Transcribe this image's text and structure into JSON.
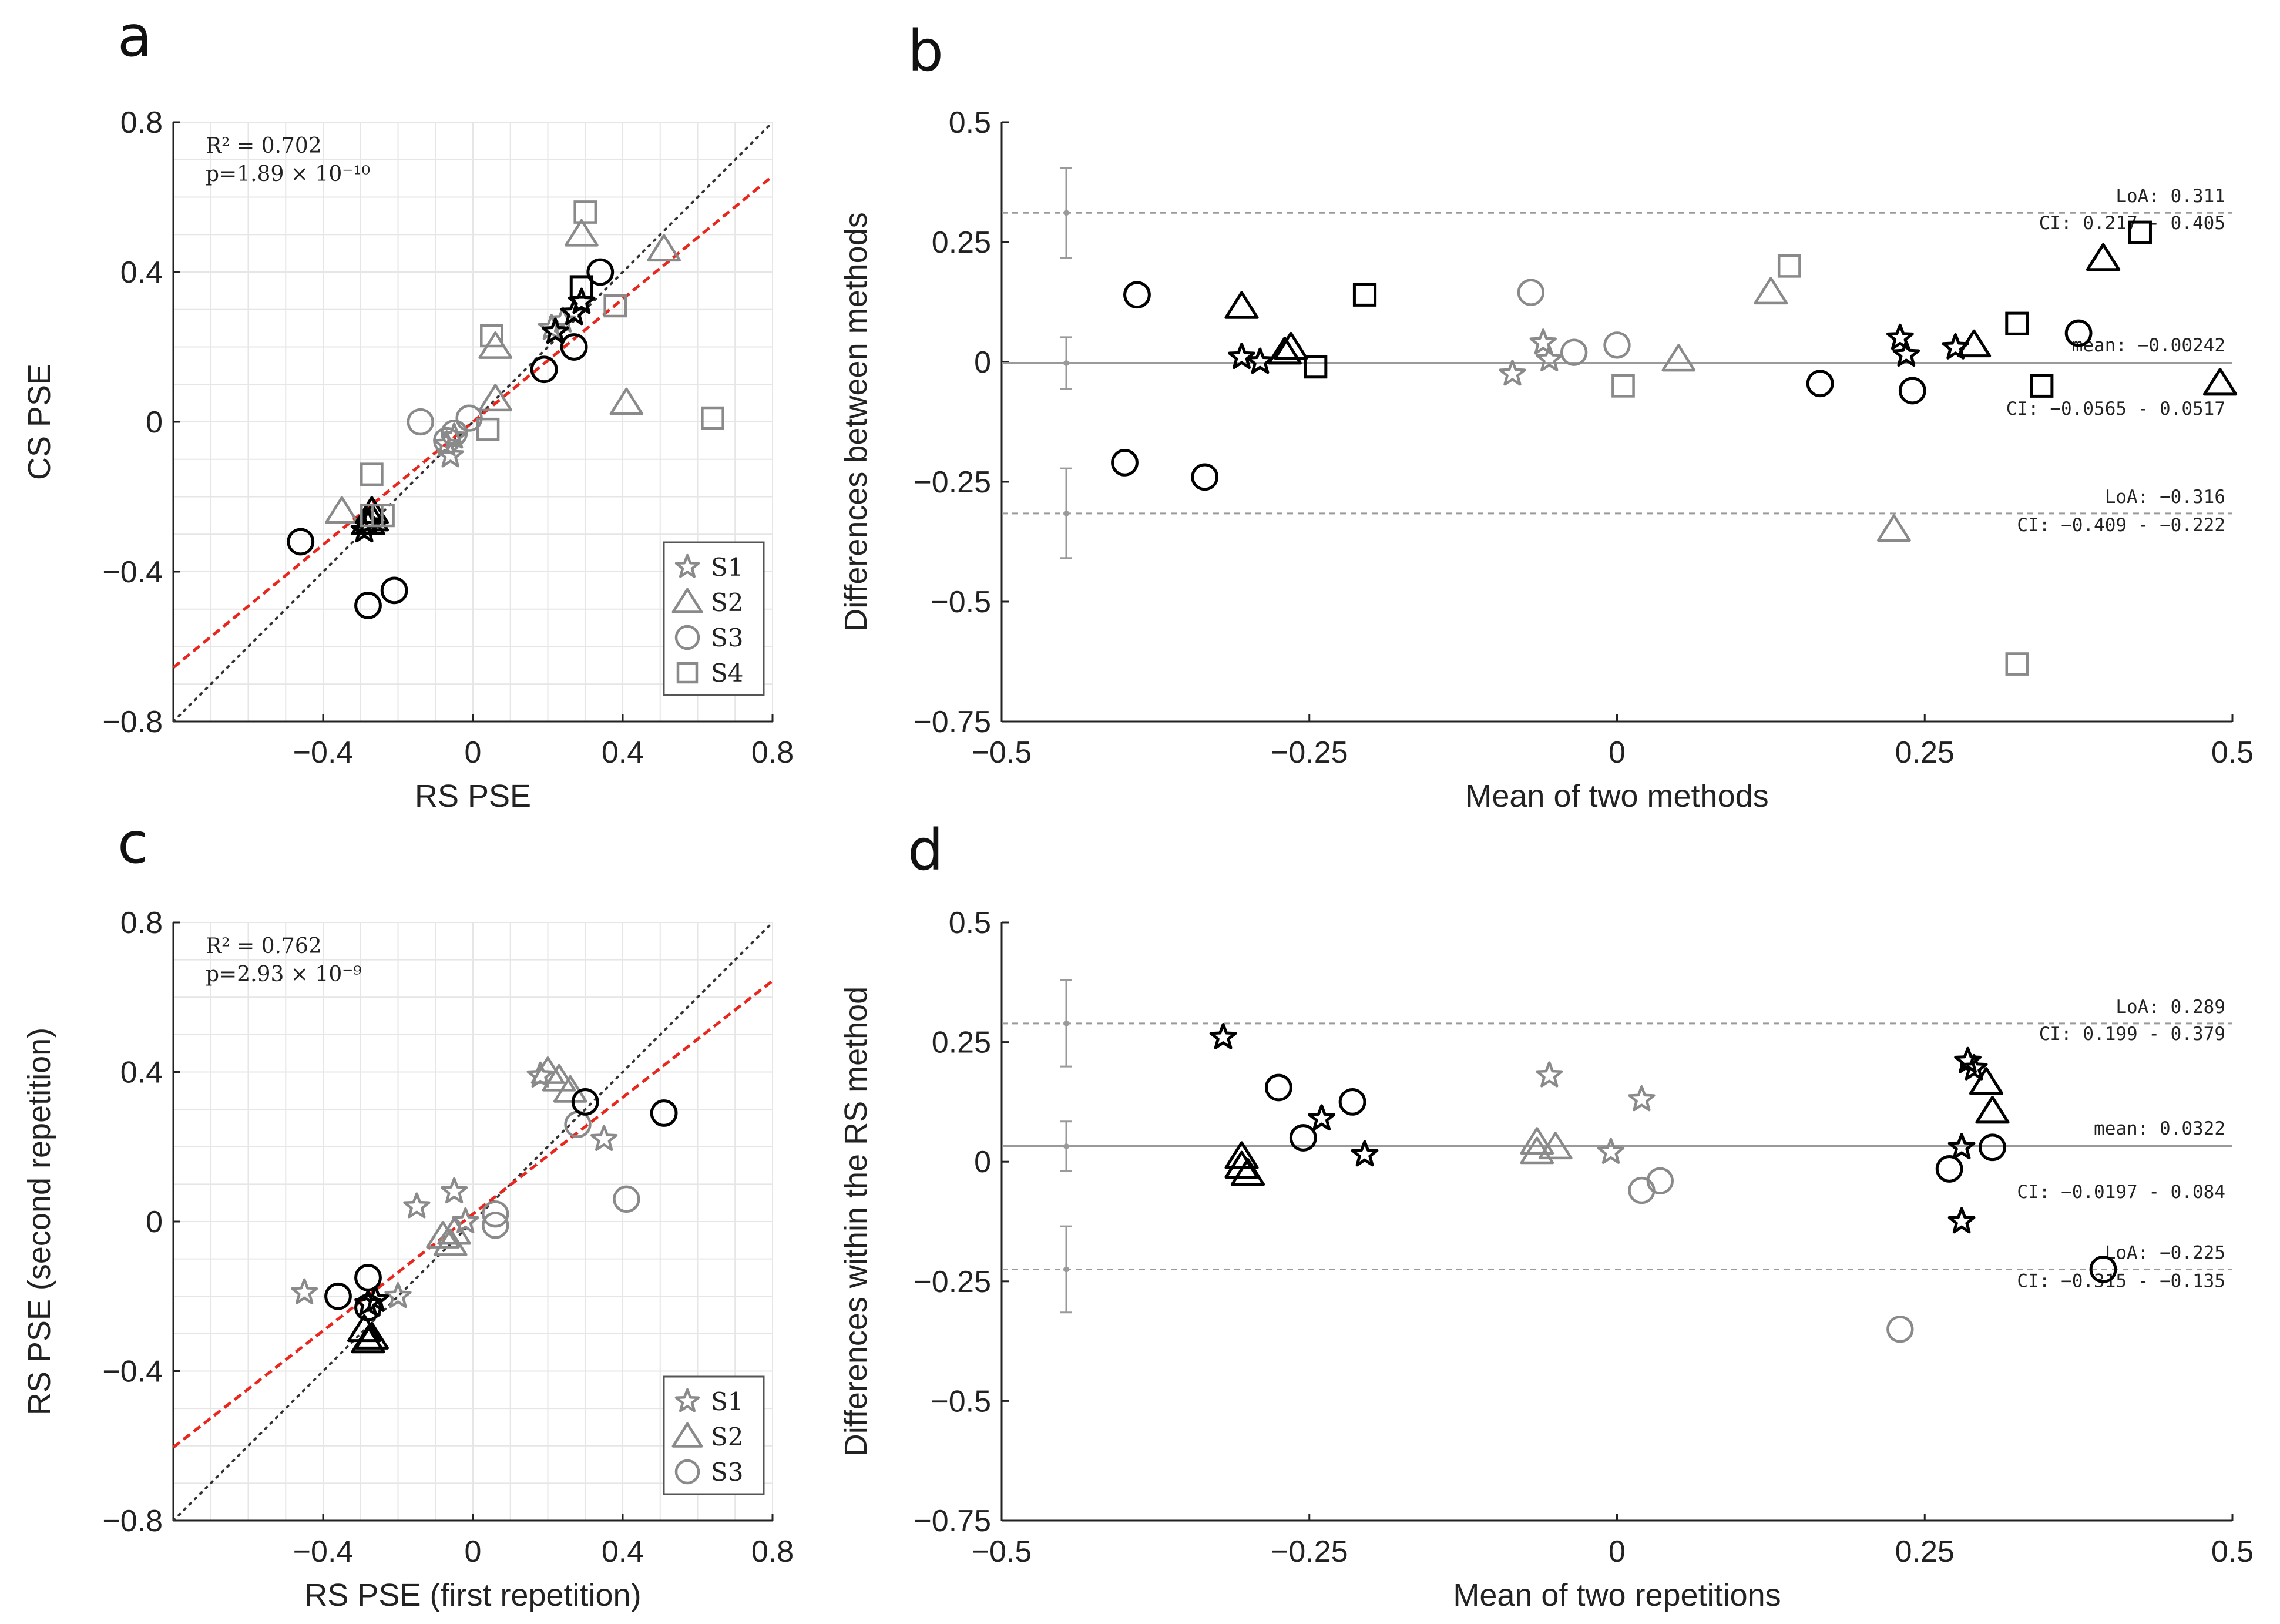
{
  "chart_data": [
    {
      "id": "a",
      "type": "scatter",
      "panel_label": "a",
      "xlabel": "RS PSE",
      "ylabel": "CS PSE",
      "xlim": [
        -0.8,
        0.8
      ],
      "ylim": [
        -0.8,
        0.8
      ],
      "xticks": [
        -0.4,
        0,
        0.4,
        0.8
      ],
      "xtick_labels": [
        "−0.4",
        "0",
        "0.4",
        "0.8"
      ],
      "yticks": [
        -0.8,
        -0.4,
        0,
        0.4,
        0.8
      ],
      "ytick_labels": [
        "−0.8",
        "−0.4",
        "0",
        "0.4",
        "0.8"
      ],
      "grid": true,
      "stats": {
        "r2": "R² = 0.702",
        "p": "p=1.89 × 10⁻¹⁰"
      },
      "identity_line": true,
      "regression": {
        "slope": 0.82,
        "intercept": 0.0
      },
      "legend": {
        "placement": "bottom-right",
        "entries": [
          {
            "label": "S1",
            "marker": "star"
          },
          {
            "label": "S2",
            "marker": "triangle"
          },
          {
            "label": "S3",
            "marker": "circle"
          },
          {
            "label": "S4",
            "marker": "square"
          }
        ]
      },
      "series": [
        {
          "name": "S1",
          "marker": "star",
          "points": [
            {
              "x": -0.06,
              "y": -0.09,
              "c": "g"
            },
            {
              "x": -0.07,
              "y": -0.06,
              "c": "g"
            },
            {
              "x": -0.05,
              "y": -0.04,
              "c": "g"
            },
            {
              "x": 0.21,
              "y": 0.25,
              "c": "g"
            },
            {
              "x": 0.24,
              "y": 0.27,
              "c": "g"
            },
            {
              "x": -0.29,
              "y": -0.29,
              "c": "k"
            },
            {
              "x": -0.28,
              "y": -0.27,
              "c": "k"
            },
            {
              "x": 0.22,
              "y": 0.24,
              "c": "k"
            },
            {
              "x": 0.27,
              "y": 0.29,
              "c": "k"
            },
            {
              "x": 0.29,
              "y": 0.32,
              "c": "k"
            }
          ]
        },
        {
          "name": "S2",
          "marker": "triangle",
          "points": [
            {
              "x": 0.29,
              "y": 0.5,
              "c": "g"
            },
            {
              "x": 0.51,
              "y": 0.46,
              "c": "g"
            },
            {
              "x": 0.06,
              "y": 0.2,
              "c": "g"
            },
            {
              "x": 0.06,
              "y": 0.06,
              "c": "g"
            },
            {
              "x": 0.41,
              "y": 0.05,
              "c": "g"
            },
            {
              "x": -0.35,
              "y": -0.24,
              "c": "g"
            },
            {
              "x": -0.27,
              "y": -0.24,
              "c": "k"
            },
            {
              "x": -0.28,
              "y": -0.27,
              "c": "k"
            },
            {
              "x": -0.27,
              "y": -0.26,
              "c": "k"
            }
          ]
        },
        {
          "name": "S3",
          "marker": "circle",
          "points": [
            {
              "x": -0.14,
              "y": 0.0,
              "c": "g"
            },
            {
              "x": -0.05,
              "y": -0.03,
              "c": "g"
            },
            {
              "x": -0.01,
              "y": 0.01,
              "c": "g"
            },
            {
              "x": -0.07,
              "y": -0.05,
              "c": "g"
            },
            {
              "x": 0.34,
              "y": 0.4,
              "c": "k"
            },
            {
              "x": 0.27,
              "y": 0.2,
              "c": "k"
            },
            {
              "x": 0.19,
              "y": 0.14,
              "c": "k"
            },
            {
              "x": -0.46,
              "y": -0.32,
              "c": "k"
            },
            {
              "x": -0.28,
              "y": -0.49,
              "c": "k"
            },
            {
              "x": -0.21,
              "y": -0.45,
              "c": "k"
            }
          ]
        },
        {
          "name": "S4",
          "marker": "square",
          "points": [
            {
              "x": 0.3,
              "y": 0.56,
              "c": "g"
            },
            {
              "x": 0.38,
              "y": 0.31,
              "c": "g"
            },
            {
              "x": 0.05,
              "y": 0.23,
              "c": "g"
            },
            {
              "x": 0.04,
              "y": -0.02,
              "c": "g"
            },
            {
              "x": 0.64,
              "y": 0.01,
              "c": "g"
            },
            {
              "x": -0.27,
              "y": -0.14,
              "c": "g"
            },
            {
              "x": -0.24,
              "y": -0.25,
              "c": "g"
            },
            {
              "x": -0.27,
              "y": -0.25,
              "c": "g"
            },
            {
              "x": 0.29,
              "y": 0.36,
              "c": "k"
            }
          ]
        }
      ]
    },
    {
      "id": "b",
      "type": "scatter",
      "panel_label": "b",
      "xlabel": "Mean of two methods",
      "ylabel": "Differences between methods",
      "xlim": [
        -0.5,
        0.5
      ],
      "ylim": [
        -0.75,
        0.5
      ],
      "xticks": [
        -0.5,
        -0.25,
        0,
        0.25,
        0.5
      ],
      "xtick_labels": [
        "−0.5",
        "−0.25",
        "0",
        "0.25",
        "0.5"
      ],
      "yticks": [
        -0.75,
        -0.5,
        -0.25,
        0,
        0.25,
        0.5
      ],
      "ytick_labels": [
        "−0.75",
        "−0.5",
        "−0.25",
        "0",
        "0.25",
        "0.5"
      ],
      "mean": -0.00242,
      "loa_upper": 0.311,
      "loa_lower": -0.316,
      "ci_mean": [
        -0.0565,
        0.0517
      ],
      "ci_upper": [
        0.217,
        0.405
      ],
      "ci_lower": [
        -0.409,
        -0.222
      ],
      "annotations": {
        "loa_upper": "LoA: 0.311",
        "ci_upper": "CI: 0.217 - 0.405",
        "mean": "mean: −0.00242",
        "ci_mean": "CI: −0.0565 - 0.0517",
        "loa_lower": "LoA: −0.316",
        "ci_lower": "CI: −0.409 - −0.222"
      },
      "points": [
        {
          "m": "circle",
          "x": -0.39,
          "y": 0.14,
          "c": "k"
        },
        {
          "m": "circle",
          "x": -0.4,
          "y": -0.21,
          "c": "k"
        },
        {
          "m": "circle",
          "x": -0.335,
          "y": -0.24,
          "c": "k"
        },
        {
          "m": "triangle",
          "x": -0.305,
          "y": 0.115,
          "c": "k"
        },
        {
          "m": "star",
          "x": -0.305,
          "y": 0.01,
          "c": "k"
        },
        {
          "m": "star",
          "x": -0.29,
          "y": 0.0,
          "c": "k"
        },
        {
          "m": "triangle",
          "x": -0.27,
          "y": 0.02,
          "c": "k"
        },
        {
          "m": "triangle",
          "x": -0.265,
          "y": 0.03,
          "c": "k"
        },
        {
          "m": "square",
          "x": -0.245,
          "y": -0.01,
          "c": "k"
        },
        {
          "m": "square",
          "x": -0.205,
          "y": 0.14,
          "c": "k"
        },
        {
          "m": "star",
          "x": -0.085,
          "y": -0.025,
          "c": "g"
        },
        {
          "m": "circle",
          "x": -0.07,
          "y": 0.145,
          "c": "g"
        },
        {
          "m": "star",
          "x": -0.06,
          "y": 0.04,
          "c": "g"
        },
        {
          "m": "star",
          "x": -0.055,
          "y": 0.005,
          "c": "g"
        },
        {
          "m": "circle",
          "x": -0.035,
          "y": 0.02,
          "c": "g"
        },
        {
          "m": "circle",
          "x": 0.0,
          "y": 0.035,
          "c": "g"
        },
        {
          "m": "square",
          "x": 0.005,
          "y": -0.05,
          "c": "g"
        },
        {
          "m": "triangle",
          "x": 0.05,
          "y": 0.005,
          "c": "g"
        },
        {
          "m": "triangle",
          "x": 0.125,
          "y": 0.145,
          "c": "g"
        },
        {
          "m": "square",
          "x": 0.14,
          "y": 0.2,
          "c": "g"
        },
        {
          "m": "circle",
          "x": 0.165,
          "y": -0.045,
          "c": "k"
        },
        {
          "m": "triangle",
          "x": 0.225,
          "y": -0.35,
          "c": "g"
        },
        {
          "m": "star",
          "x": 0.23,
          "y": 0.05,
          "c": "k"
        },
        {
          "m": "star",
          "x": 0.235,
          "y": 0.015,
          "c": "k"
        },
        {
          "m": "circle",
          "x": 0.24,
          "y": -0.06,
          "c": "k"
        },
        {
          "m": "star",
          "x": 0.275,
          "y": 0.03,
          "c": "k"
        },
        {
          "m": "triangle",
          "x": 0.29,
          "y": 0.035,
          "c": "k"
        },
        {
          "m": "square",
          "x": 0.325,
          "y": 0.08,
          "c": "k"
        },
        {
          "m": "square",
          "x": 0.325,
          "y": -0.63,
          "c": "g"
        },
        {
          "m": "square",
          "x": 0.345,
          "y": -0.05,
          "c": "k"
        },
        {
          "m": "circle",
          "x": 0.375,
          "y": 0.06,
          "c": "k"
        },
        {
          "m": "triangle",
          "x": 0.395,
          "y": 0.215,
          "c": "k"
        },
        {
          "m": "square",
          "x": 0.425,
          "y": 0.27,
          "c": "k"
        },
        {
          "m": "triangle",
          "x": 0.49,
          "y": -0.045,
          "c": "k"
        }
      ]
    },
    {
      "id": "c",
      "type": "scatter",
      "panel_label": "c",
      "xlabel": "RS PSE (first repetition)",
      "ylabel": "RS PSE (second repetition)",
      "xlim": [
        -0.8,
        0.8
      ],
      "ylim": [
        -0.8,
        0.8
      ],
      "xticks": [
        -0.4,
        0,
        0.4,
        0.8
      ],
      "xtick_labels": [
        "−0.4",
        "0",
        "0.4",
        "0.8"
      ],
      "yticks": [
        -0.8,
        -0.4,
        0,
        0.4,
        0.8
      ],
      "ytick_labels": [
        "−0.8",
        "−0.4",
        "0",
        "0.4",
        "0.8"
      ],
      "grid": true,
      "stats": {
        "r2": "R² = 0.762",
        "p": "p=2.93 × 10⁻⁹"
      },
      "identity_line": true,
      "regression": {
        "slope": 0.78,
        "intercept": 0.02
      },
      "legend": {
        "placement": "bottom-right",
        "entries": [
          {
            "label": "S1",
            "marker": "star"
          },
          {
            "label": "S2",
            "marker": "triangle"
          },
          {
            "label": "S3",
            "marker": "circle"
          }
        ]
      },
      "series": [
        {
          "name": "S1",
          "marker": "star",
          "points": [
            {
              "x": -0.15,
              "y": 0.04,
              "c": "g"
            },
            {
              "x": -0.05,
              "y": 0.08,
              "c": "g"
            },
            {
              "x": -0.02,
              "y": 0.0,
              "c": "g"
            },
            {
              "x": 0.18,
              "y": 0.39,
              "c": "g"
            },
            {
              "x": 0.35,
              "y": 0.22,
              "c": "g"
            },
            {
              "x": -0.45,
              "y": -0.19,
              "c": "g"
            },
            {
              "x": -0.2,
              "y": -0.2,
              "c": "g"
            },
            {
              "x": -0.28,
              "y": -0.22,
              "c": "k"
            },
            {
              "x": -0.26,
              "y": -0.21,
              "c": "k"
            }
          ]
        },
        {
          "name": "S2",
          "marker": "triangle",
          "points": [
            {
              "x": 0.2,
              "y": 0.4,
              "c": "g"
            },
            {
              "x": 0.23,
              "y": 0.38,
              "c": "g"
            },
            {
              "x": 0.26,
              "y": 0.35,
              "c": "g"
            },
            {
              "x": -0.08,
              "y": -0.04,
              "c": "g"
            },
            {
              "x": -0.06,
              "y": -0.06,
              "c": "g"
            },
            {
              "x": -0.05,
              "y": -0.03,
              "c": "g"
            },
            {
              "x": -0.29,
              "y": -0.29,
              "c": "k"
            },
            {
              "x": -0.28,
              "y": -0.32,
              "c": "k"
            },
            {
              "x": -0.27,
              "y": -0.31,
              "c": "k"
            }
          ]
        },
        {
          "name": "S3",
          "marker": "circle",
          "points": [
            {
              "x": 0.06,
              "y": 0.02,
              "c": "g"
            },
            {
              "x": 0.06,
              "y": -0.01,
              "c": "g"
            },
            {
              "x": 0.41,
              "y": 0.06,
              "c": "g"
            },
            {
              "x": 0.28,
              "y": 0.26,
              "c": "g"
            },
            {
              "x": 0.3,
              "y": 0.32,
              "c": "k"
            },
            {
              "x": 0.51,
              "y": 0.29,
              "c": "k"
            },
            {
              "x": -0.36,
              "y": -0.2,
              "c": "k"
            },
            {
              "x": -0.28,
              "y": -0.15,
              "c": "k"
            },
            {
              "x": -0.28,
              "y": -0.23,
              "c": "k"
            }
          ]
        }
      ]
    },
    {
      "id": "d",
      "type": "scatter",
      "panel_label": "d",
      "xlabel": "Mean of two repetitions",
      "ylabel": "Differences within the RS method",
      "xlim": [
        -0.5,
        0.5
      ],
      "ylim": [
        -0.75,
        0.5
      ],
      "xticks": [
        -0.5,
        -0.25,
        0,
        0.25,
        0.5
      ],
      "xtick_labels": [
        "−0.5",
        "−0.25",
        "0",
        "0.25",
        "0.5"
      ],
      "yticks": [
        -0.75,
        -0.5,
        -0.25,
        0,
        0.25,
        0.5
      ],
      "ytick_labels": [
        "−0.75",
        "−0.5",
        "−0.25",
        "0",
        "0.25",
        "0.5"
      ],
      "mean": 0.0322,
      "loa_upper": 0.289,
      "loa_lower": -0.225,
      "ci_mean": [
        -0.0197,
        0.084
      ],
      "ci_upper": [
        0.199,
        0.379
      ],
      "ci_lower": [
        -0.315,
        -0.135
      ],
      "annotations": {
        "loa_upper": "LoA: 0.289",
        "ci_upper": "CI: 0.199 - 0.379",
        "mean": "mean: 0.0322",
        "ci_mean": "CI: −0.0197 - 0.084",
        "loa_lower": "LoA: −0.225",
        "ci_lower": "CI: −0.315 - −0.135"
      },
      "points": [
        {
          "m": "star",
          "x": -0.32,
          "y": 0.26,
          "c": "k"
        },
        {
          "m": "circle",
          "x": -0.275,
          "y": 0.155,
          "c": "k"
        },
        {
          "m": "triangle",
          "x": -0.305,
          "y": 0.01,
          "c": "k"
        },
        {
          "m": "triangle",
          "x": -0.305,
          "y": -0.01,
          "c": "k"
        },
        {
          "m": "triangle",
          "x": -0.3,
          "y": -0.025,
          "c": "k"
        },
        {
          "m": "circle",
          "x": -0.255,
          "y": 0.05,
          "c": "k"
        },
        {
          "m": "star",
          "x": -0.24,
          "y": 0.09,
          "c": "k"
        },
        {
          "m": "circle",
          "x": -0.215,
          "y": 0.125,
          "c": "k"
        },
        {
          "m": "star",
          "x": -0.205,
          "y": 0.015,
          "c": "k"
        },
        {
          "m": "triangle",
          "x": -0.065,
          "y": 0.04,
          "c": "g"
        },
        {
          "m": "triangle",
          "x": -0.065,
          "y": 0.02,
          "c": "g"
        },
        {
          "m": "triangle",
          "x": -0.05,
          "y": 0.03,
          "c": "g"
        },
        {
          "m": "star",
          "x": -0.055,
          "y": 0.18,
          "c": "g"
        },
        {
          "m": "star",
          "x": -0.005,
          "y": 0.02,
          "c": "g"
        },
        {
          "m": "star",
          "x": 0.02,
          "y": 0.13,
          "c": "g"
        },
        {
          "m": "circle",
          "x": 0.02,
          "y": -0.06,
          "c": "g"
        },
        {
          "m": "circle",
          "x": 0.035,
          "y": -0.04,
          "c": "g"
        },
        {
          "m": "circle",
          "x": 0.23,
          "y": -0.35,
          "c": "g"
        },
        {
          "m": "circle",
          "x": 0.27,
          "y": -0.015,
          "c": "k"
        },
        {
          "m": "star",
          "x": 0.28,
          "y": 0.03,
          "c": "k"
        },
        {
          "m": "star",
          "x": 0.28,
          "y": -0.125,
          "c": "k"
        },
        {
          "m": "star",
          "x": 0.285,
          "y": 0.21,
          "c": "k"
        },
        {
          "m": "star",
          "x": 0.29,
          "y": 0.195,
          "c": "k"
        },
        {
          "m": "triangle",
          "x": 0.3,
          "y": 0.165,
          "c": "k"
        },
        {
          "m": "triangle",
          "x": 0.305,
          "y": 0.105,
          "c": "k"
        },
        {
          "m": "circle",
          "x": 0.305,
          "y": 0.03,
          "c": "k"
        },
        {
          "m": "circle",
          "x": 0.395,
          "y": -0.225,
          "c": "k"
        }
      ]
    }
  ],
  "colors": {
    "black_marker": "#000000",
    "gray_marker": "#8a8a8a",
    "regression": "#e8281e",
    "identity": "#333333",
    "ref_line": "#9a9a9a",
    "grid": "#e6e6e6"
  }
}
